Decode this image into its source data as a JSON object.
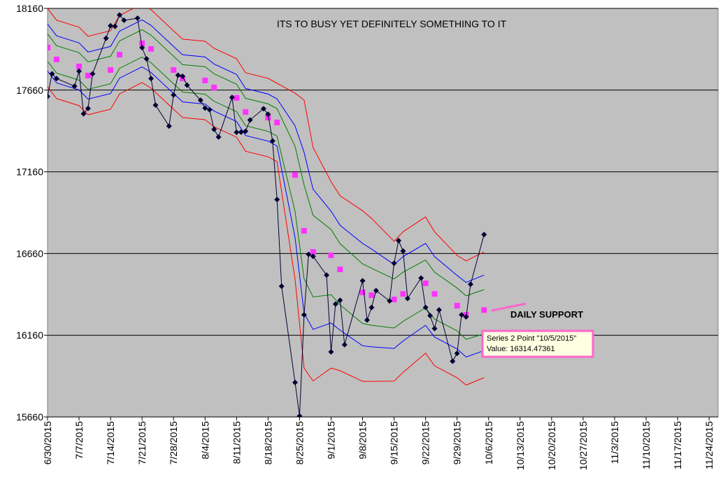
{
  "chart_data": {
    "type": "line",
    "title": "ITS TO BUSY YET DEFINITELY SOMETHING TO IT",
    "annotations": [
      "DAILY SUPPORT",
      "Series 2 Point \"10/5/2015\"",
      "Value: 16314.47361"
    ],
    "ylim": [
      15660,
      18160
    ],
    "yticks": [
      15660,
      16160,
      16660,
      17160,
      17660,
      18160
    ],
    "xlim": [
      "6/30/2015",
      "11/26/2015"
    ],
    "xticks": [
      "6/30/2015",
      "7/7/2015",
      "7/14/2015",
      "7/21/2015",
      "7/28/2015",
      "8/4/2015",
      "8/11/2015",
      "8/18/2015",
      "8/25/2015",
      "9/1/2015",
      "9/8/2015",
      "9/15/2015",
      "9/22/2015",
      "9/29/2015",
      "10/6/2015",
      "10/13/2015",
      "10/20/2015",
      "10/27/2015",
      "11/3/2015",
      "11/10/2015",
      "11/17/2015",
      "11/24/2015"
    ],
    "grid": true,
    "x": [
      "6/30/2015",
      "7/2/2015",
      "7/7/2015",
      "7/9/2015",
      "7/14/2015",
      "7/16/2015",
      "7/21/2015",
      "7/23/2015",
      "7/28/2015",
      "7/30/2015",
      "8/4/2015",
      "8/6/2015",
      "8/11/2015",
      "8/13/2015",
      "8/18/2015",
      "8/20/2015",
      "8/24/2015",
      "8/26/2015",
      "8/28/2015",
      "9/1/2015",
      "9/3/2015",
      "9/8/2015",
      "9/10/2015",
      "9/15/2015",
      "9/17/2015",
      "9/22/2015",
      "9/24/2015",
      "9/29/2015",
      "10/1/2015",
      "10/5/2015"
    ],
    "series": [
      {
        "color": "#ff0000",
        "marker": "none",
        "values": [
          18160,
          18088,
          18045,
          17989,
          18023,
          18117,
          18186,
          18152,
          18023,
          17972,
          17959,
          17916,
          17852,
          17766,
          17732,
          17702,
          17641,
          17599,
          17310,
          17099,
          17013,
          16922,
          16875,
          16735,
          16793,
          16884,
          16793,
          16649,
          16615,
          16670
        ]
      },
      {
        "color": "#0000ff",
        "marker": "none",
        "values": [
          18064,
          17992,
          17949,
          17893,
          17927,
          18021,
          18090,
          18056,
          17927,
          17876,
          17863,
          17820,
          17756,
          17670,
          17636,
          17606,
          17441,
          17279,
          17054,
          16919,
          16833,
          16722,
          16687,
          16593,
          16641,
          16722,
          16641,
          16526,
          16483,
          16528
        ]
      },
      {
        "color": "#008000",
        "marker": "none",
        "values": [
          18004,
          17932,
          17889,
          17833,
          17867,
          17961,
          18030,
          17996,
          17867,
          17816,
          17803,
          17760,
          17696,
          17610,
          17576,
          17546,
          17316,
          17079,
          16894,
          16807,
          16720,
          16597,
          16570,
          16504,
          16546,
          16620,
          16546,
          16449,
          16401,
          16439
        ]
      },
      {
        "color": "#008000",
        "marker": "none",
        "values": [
          17836,
          17764,
          17721,
          17665,
          17699,
          17793,
          17862,
          17828,
          17699,
          17648,
          17635,
          17592,
          17528,
          17442,
          17408,
          17378,
          16917,
          16505,
          16394,
          16408,
          16346,
          16232,
          16221,
          16204,
          16245,
          16328,
          16259,
          16187,
          16135,
          16169
        ]
      },
      {
        "color": "#0000ff",
        "marker": "none",
        "values": [
          17776,
          17704,
          17661,
          17605,
          17639,
          17733,
          17802,
          17768,
          17639,
          17588,
          17575,
          17532,
          17468,
          17382,
          17348,
          17318,
          16757,
          16295,
          16196,
          16235,
          16191,
          16096,
          16089,
          16079,
          16125,
          16221,
          16149,
          16076,
          16027,
          16066
        ]
      },
      {
        "color": "#ff0000",
        "marker": "none",
        "values": [
          17680,
          17608,
          17565,
          17509,
          17543,
          17637,
          17706,
          17672,
          17543,
          17492,
          17479,
          17436,
          17372,
          17286,
          17252,
          17222,
          16501,
          15959,
          15880,
          15959,
          15943,
          15878,
          15878,
          15879,
          15933,
          16050,
          15973,
          15900,
          15855,
          15900
        ]
      },
      {
        "color": "#ff33ff",
        "marker": "square",
        "values": [
          17920,
          17848,
          17805,
          17749,
          17783,
          17877,
          17946,
          17912,
          17783,
          17732,
          17719,
          17676,
          17612,
          17526,
          17492,
          17462,
          17141,
          16799,
          16670,
          16649,
          16563,
          16422,
          16405,
          16379,
          16413,
          16478,
          16413,
          16341,
          16285,
          16314
        ]
      },
      {
        "color": "#000033",
        "marker": "diamond",
        "x": [
          "6/30/2015",
          "7/1/2015",
          "7/2/2015",
          "7/6/2015",
          "7/7/2015",
          "7/8/2015",
          "7/9/2015",
          "7/10/2015",
          "7/13/2015",
          "7/14/2015",
          "7/15/2015",
          "7/16/2015",
          "7/17/2015",
          "7/20/2015",
          "7/21/2015",
          "7/22/2015",
          "7/23/2015",
          "7/24/2015",
          "7/27/2015",
          "7/28/2015",
          "7/29/2015",
          "7/30/2015",
          "7/31/2015",
          "8/3/2015",
          "8/4/2015",
          "8/5/2015",
          "8/6/2015",
          "8/7/2015",
          "8/10/2015",
          "8/11/2015",
          "8/12/2015",
          "8/13/2015",
          "8/14/2015",
          "8/17/2015",
          "8/18/2015",
          "8/19/2015",
          "8/20/2015",
          "8/21/2015",
          "8/24/2015",
          "8/25/2015",
          "8/26/2015",
          "8/27/2015",
          "8/28/2015",
          "8/31/2015",
          "9/1/2015",
          "9/2/2015",
          "9/3/2015",
          "9/4/2015",
          "9/8/2015",
          "9/9/2015",
          "9/10/2015",
          "9/11/2015",
          "9/14/2015",
          "9/15/2015",
          "9/16/2015",
          "9/17/2015",
          "9/18/2015",
          "9/21/2015",
          "9/22/2015",
          "9/23/2015",
          "9/24/2015",
          "9/25/2015",
          "9/28/2015",
          "9/29/2015",
          "9/30/2015",
          "10/1/2015",
          "10/2/2015",
          "10/5/2015"
        ],
        "values": [
          17621,
          17760,
          17731,
          17684,
          17776,
          17515,
          17548,
          17760,
          17977,
          18054,
          18050,
          18120,
          18087,
          18100,
          17920,
          17851,
          17731,
          17568,
          17440,
          17630,
          17751,
          17745,
          17690,
          17598,
          17550,
          17540,
          17420,
          17373,
          17615,
          17402,
          17403,
          17408,
          17477,
          17546,
          17512,
          17349,
          16990,
          16460,
          15871,
          15666,
          16285,
          16655,
          16643,
          16528,
          16058,
          16351,
          16374,
          16102,
          16493,
          16253,
          16330,
          16433,
          16370,
          16600,
          16739,
          16675,
          16385,
          16510,
          16330,
          16280,
          16201,
          16315,
          16001,
          16049,
          16285,
          16272,
          16472,
          16776
        ]
      }
    ]
  }
}
